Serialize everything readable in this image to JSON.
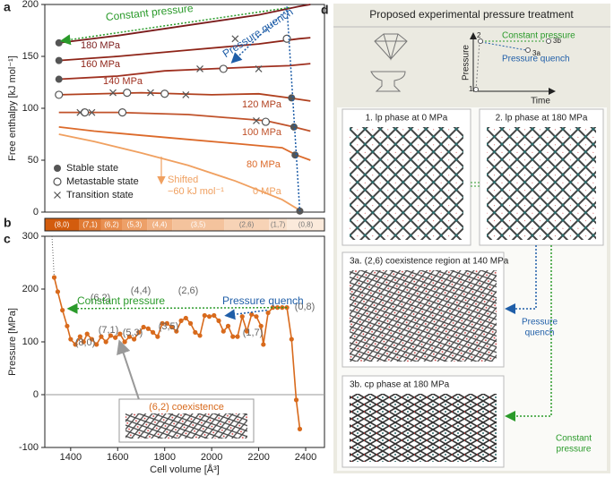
{
  "chart_data": [
    {
      "type": "line",
      "panel": "a",
      "ylabel": "Free enthalpy [kJ mol⁻¹]",
      "xlim": [
        1290,
        2480
      ],
      "ylim": [
        0,
        200
      ],
      "yticks": [
        0,
        50,
        100,
        150,
        200
      ],
      "series": [
        {
          "name": "180 MPa",
          "color": "#7b1c1c",
          "x": [
            1350,
            1600,
            1900,
            2200,
            2370,
            2420
          ],
          "values": [
            163,
            170,
            180,
            190,
            198,
            200
          ]
        },
        {
          "name": "160 MPa",
          "color": "#8e2418",
          "x": [
            1350,
            1600,
            1900,
            2200,
            2370,
            2420
          ],
          "values": [
            146,
            150,
            156,
            162,
            167,
            168
          ]
        },
        {
          "name": "140 MPa",
          "color": "#9f3020",
          "x": [
            1350,
            1600,
            1800,
            2000,
            2200,
            2330,
            2420
          ],
          "values": [
            128,
            131,
            136,
            138,
            140,
            141,
            143
          ]
        },
        {
          "name": "120 MPa",
          "color": "#b0401e",
          "x": [
            1350,
            1700,
            2000,
            2200,
            2330,
            2420
          ],
          "values": [
            113,
            115,
            113,
            114,
            110,
            107
          ]
        },
        {
          "name": "100 MPa",
          "color": "#c0522a",
          "x": [
            1350,
            1600,
            1900,
            2230,
            2350,
            2420
          ],
          "values": [
            96,
            96,
            94,
            88,
            82,
            78
          ]
        },
        {
          "name": "80 MPa",
          "color": "#dc6a2a",
          "x": [
            1350,
            1500,
            1700,
            1900,
            2100,
            2300,
            2360,
            2420
          ],
          "values": [
            82,
            78,
            74,
            70,
            66,
            62,
            55,
            50
          ]
        },
        {
          "name": "0 MPa",
          "color": "#f0a060",
          "x": [
            1350,
            1500,
            1700,
            1900,
            2100,
            2300,
            2380
          ],
          "values": [
            75,
            68,
            57,
            45,
            30,
            12,
            1
          ]
        }
      ],
      "markers": [
        {
          "name": "Stable state",
          "symbol": "filled",
          "x": [
            1350,
            1350,
            1350,
            2340,
            2350,
            2355,
            2375
          ],
          "values": [
            163,
            146,
            128,
            110,
            82,
            55,
            1
          ]
        },
        {
          "name": "Metastable state",
          "symbol": "open",
          "x": [
            2320,
            2050,
            1350,
            1640,
            1800,
            1460,
            1620,
            2230
          ],
          "values": [
            167,
            138,
            113,
            115,
            114,
            96,
            96,
            87
          ]
        },
        {
          "name": "Transition state",
          "symbol": "cross",
          "x": [
            2100,
            1950,
            2200,
            1580,
            1740,
            1890,
            1440,
            1490,
            2190
          ],
          "values": [
            167,
            138,
            138,
            115,
            115,
            113,
            96,
            96,
            88
          ]
        }
      ],
      "annotations": {
        "constant": "Constant pressure",
        "quench": "Pressure quench",
        "shifted": [
          "Shifted",
          "−60 kJ mol⁻¹"
        ]
      }
    },
    {
      "type": "segments",
      "panel": "b",
      "categories": [
        "(8,0)",
        "(7,1)",
        "(6,2)",
        "(5,3)",
        "(4,4)",
        "(3,5)",
        "(2,6)",
        "(1,7)",
        "(0,8)"
      ],
      "bins": [
        1290,
        1435,
        1530,
        1618,
        1725,
        1832,
        2053,
        2244,
        2320,
        2480
      ],
      "colors": [
        "#d35c0d",
        "#e07b35",
        "#e88f50",
        "#eda068",
        "#f1b284",
        "#f4c39d",
        "#f7d3b6",
        "#f9e0cb",
        "#fbeadb"
      ],
      "xlim": [
        1290,
        2480
      ]
    },
    {
      "type": "line",
      "panel": "c",
      "xlabel": "Cell volume [Å³]",
      "ylabel": "Pressure [MPa]",
      "xlim": [
        1290,
        2480
      ],
      "ylim": [
        -100,
        300
      ],
      "xticks": [
        1400,
        1600,
        1800,
        2000,
        2200,
        2400
      ],
      "yticks": [
        -100,
        0,
        100,
        200,
        300
      ],
      "series": [
        {
          "color": "#d86a1c",
          "x": [
            1330,
            1345,
            1365,
            1385,
            1400,
            1420,
            1440,
            1455,
            1470,
            1490,
            1510,
            1530,
            1550,
            1570,
            1590,
            1610,
            1630,
            1650,
            1670,
            1690,
            1710,
            1730,
            1750,
            1770,
            1790,
            1810,
            1830,
            1850,
            1870,
            1890,
            1910,
            1930,
            1950,
            1970,
            1990,
            2010,
            2030,
            2050,
            2070,
            2090,
            2110,
            2130,
            2150,
            2170,
            2190,
            2210,
            2220,
            2240,
            2260,
            2280,
            2300,
            2320,
            2340,
            2360,
            2375
          ],
          "values": [
            222,
            195,
            160,
            130,
            105,
            95,
            110,
            100,
            115,
            105,
            95,
            110,
            100,
            112,
            108,
            115,
            100,
            110,
            105,
            118,
            128,
            125,
            118,
            110,
            135,
            135,
            128,
            120,
            140,
            145,
            135,
            118,
            112,
            150,
            148,
            150,
            140,
            120,
            130,
            110,
            110,
            148,
            120,
            152,
            148,
            130,
            95,
            155,
            165,
            165,
            165,
            165,
            105,
            -10,
            -65
          ]
        }
      ],
      "labels": [
        "(8,0)",
        "(7,1)",
        "(6,2)",
        "(5,3)",
        "(4,4)",
        "(3,5)",
        "(2,6)",
        "(1,7)",
        "(0,8)"
      ],
      "annotations": {
        "constant": "Constant pressure",
        "quench": "Pressure quench",
        "inset": "(6,2) coexistence"
      }
    }
  ],
  "diagram": {
    "label": "d",
    "title": "Proposed experimental pressure treatment",
    "schematic": {
      "ylabel": "Pressure",
      "xlabel": "Time",
      "points": [
        "1",
        "2",
        "3a",
        "3b"
      ],
      "lines": [
        "Constant pressure",
        "Pressure quench"
      ]
    },
    "panels": [
      "1. lp phase at 0 MPa",
      "2. lp phase at 180 MPa",
      "3a. (2,6) coexistence region at 140 MPa",
      "3b. cp phase at 180 MPa"
    ],
    "arrows": [
      [
        "Pressure",
        "quench"
      ],
      [
        "Constant",
        "pressure"
      ]
    ]
  }
}
